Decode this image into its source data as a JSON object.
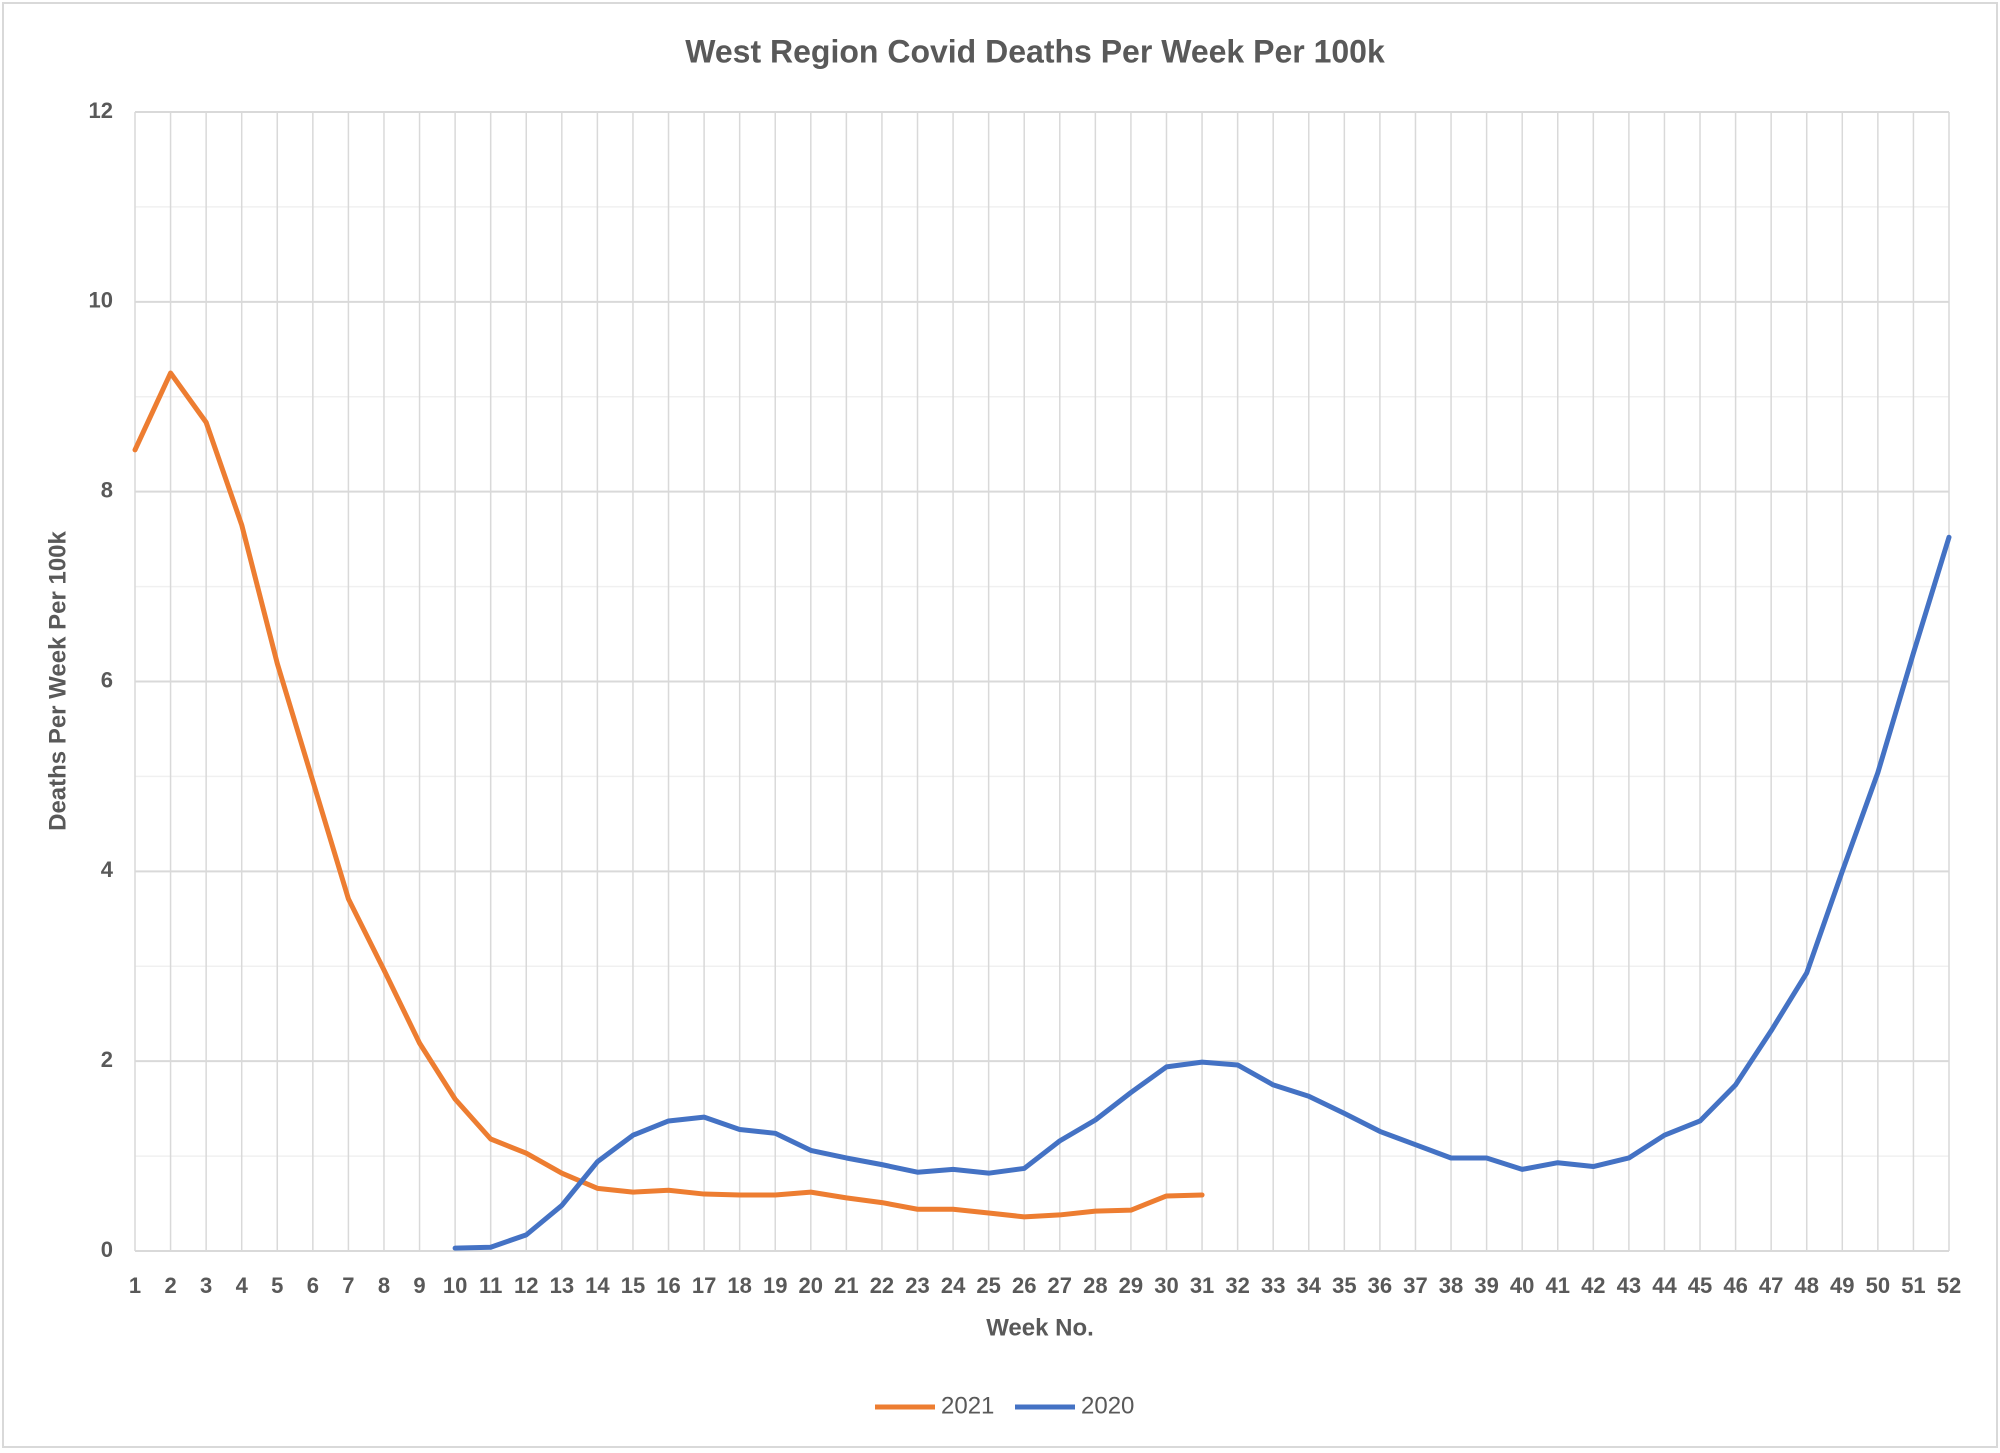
{
  "chart_data": {
    "type": "line",
    "title": "West Region Covid Deaths Per Week Per 100k",
    "x_label": "Week No.",
    "y_label": "Deaths Per Week Per 100k",
    "categories": [
      1,
      2,
      3,
      4,
      5,
      6,
      7,
      8,
      9,
      10,
      11,
      12,
      13,
      14,
      15,
      16,
      17,
      18,
      19,
      20,
      21,
      22,
      23,
      24,
      25,
      26,
      27,
      28,
      29,
      30,
      31,
      32,
      33,
      34,
      35,
      36,
      37,
      38,
      39,
      40,
      41,
      42,
      43,
      44,
      45,
      46,
      47,
      48,
      49,
      50,
      51,
      52
    ],
    "series": [
      {
        "name": "2021",
        "color": "#ed7d31",
        "values": [
          8.44,
          9.25,
          8.73,
          7.65,
          6.19,
          4.95,
          3.71,
          2.96,
          2.19,
          1.6,
          1.18,
          1.03,
          0.82,
          0.66,
          0.62,
          0.64,
          0.6,
          0.59,
          0.59,
          0.62,
          0.56,
          0.51,
          0.44,
          0.44,
          0.4,
          0.36,
          0.38,
          0.42,
          0.43,
          0.58,
          0.59,
          null,
          null,
          null,
          null,
          null,
          null,
          null,
          null,
          null,
          null,
          null,
          null,
          null,
          null,
          null,
          null,
          null,
          null,
          null,
          null,
          null
        ]
      },
      {
        "name": "2020",
        "color": "#4472c4",
        "values": [
          null,
          null,
          null,
          null,
          null,
          null,
          null,
          null,
          null,
          0.03,
          0.04,
          0.17,
          0.48,
          0.94,
          1.22,
          1.37,
          1.41,
          1.28,
          1.24,
          1.06,
          0.98,
          0.91,
          0.83,
          0.86,
          0.82,
          0.87,
          1.16,
          1.38,
          1.67,
          1.94,
          1.99,
          1.96,
          1.75,
          1.63,
          1.45,
          1.26,
          1.12,
          0.98,
          0.98,
          0.86,
          0.93,
          0.89,
          0.98,
          1.22,
          1.37,
          1.75,
          2.32,
          2.93,
          4.0,
          5.04,
          6.3,
          7.52
        ]
      }
    ],
    "ylim": [
      0,
      12
    ],
    "yticks": [
      0,
      2,
      4,
      6,
      8,
      10,
      12
    ],
    "grid": true,
    "legend": "bottom"
  }
}
